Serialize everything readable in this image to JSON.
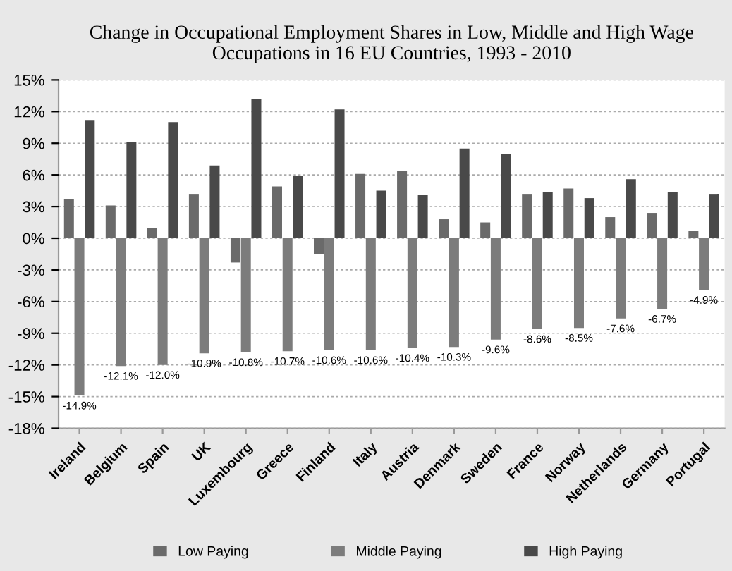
{
  "chart_data": {
    "type": "bar",
    "title": "Change in Occupational Employment Shares in Low, Middle and High Wage Occupations in 16 EU Countries, 1993 - 2010",
    "categories": [
      "Ireland",
      "Belgium",
      "Spain",
      "UK",
      "Luxembourg",
      "Greece",
      "Finland",
      "Italy",
      "Austria",
      "Denmark",
      "Sweden",
      "France",
      "Norway",
      "Netherlands",
      "Germany",
      "Portugal"
    ],
    "series": [
      {
        "name": "Low Paying",
        "color": "#6a6a6a",
        "values": [
          3.7,
          3.1,
          1.0,
          4.2,
          -2.3,
          4.9,
          -1.5,
          6.1,
          6.4,
          1.8,
          1.5,
          4.2,
          4.7,
          2.0,
          2.4,
          0.7
        ]
      },
      {
        "name": "Middle Paying",
        "color": "#7c7c7c",
        "values": [
          -14.9,
          -12.1,
          -12.0,
          -10.9,
          -10.8,
          -10.7,
          -10.6,
          -10.6,
          -10.4,
          -10.3,
          -9.6,
          -8.6,
          -8.5,
          -7.6,
          -6.7,
          -4.9
        ],
        "value_labels": [
          "-14.9%",
          "-12.1%",
          "-12.0%",
          "-10.9%",
          "-10.8%",
          "-10.7%",
          "-10.6%",
          "-10.6%",
          "-10.4%",
          "-10.3%",
          "-9.6%",
          "-8.6%",
          "-8.5%",
          "-7.6%",
          "-6.7%",
          "-4.9%"
        ]
      },
      {
        "name": "High Paying",
        "color": "#494949",
        "values": [
          11.2,
          9.1,
          11.0,
          6.9,
          13.2,
          5.9,
          12.2,
          4.5,
          4.1,
          8.5,
          8.0,
          4.4,
          3.8,
          5.6,
          4.4,
          4.2
        ]
      }
    ],
    "ylim": [
      -18,
      15
    ],
    "yticks": [
      {
        "value": -18,
        "label": "-18%"
      },
      {
        "value": -15,
        "label": "-15%"
      },
      {
        "value": -12,
        "label": "-12%"
      },
      {
        "value": -9,
        "label": "-9%"
      },
      {
        "value": -6,
        "label": "-6%"
      },
      {
        "value": -3,
        "label": "-3%"
      },
      {
        "value": 0,
        "label": "0%"
      },
      {
        "value": 3,
        "label": "3%"
      },
      {
        "value": 6,
        "label": "6%"
      },
      {
        "value": 9,
        "label": "9%"
      },
      {
        "value": 12,
        "label": "12%"
      },
      {
        "value": 15,
        "label": "15%"
      }
    ],
    "grid": "y",
    "legend": "bottom"
  }
}
